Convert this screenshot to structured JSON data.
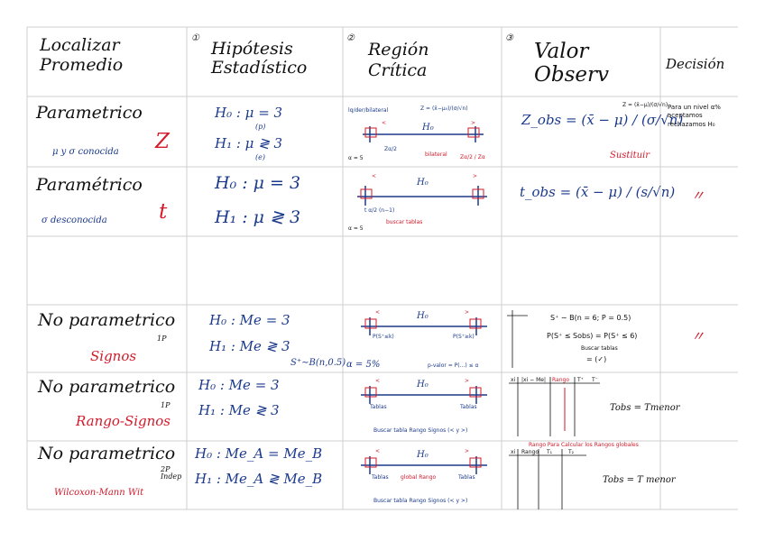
{
  "headers": {
    "h1": "Localizar Promedio",
    "h2_num": "①",
    "h2": "Hipótesis Estadístico",
    "h3_num": "②",
    "h3": "Región Crítica",
    "h4_num": "③",
    "h4": "Valor Observ",
    "h5": "Decisión"
  },
  "rows": [
    {
      "title": "Parametrico",
      "sub": "μ y σ conocida",
      "stat": "Z",
      "h0": "H₀ : μ = 3",
      "h1": "H₁ : μ ≷ 3",
      "h0_note": "(p)",
      "h1_note": "(e)",
      "rc_top": "lq/der/bilateral",
      "rc_formula": "Z = (x̄−μ₀)/(σ/√n)",
      "rc_h0": "H₀",
      "rc_left": "<",
      "rc_right": ">",
      "rc_b1": "Zα/2",
      "rc_b2": "bilateral",
      "rc_b3": "Zα/2 / Zα",
      "rc_alpha": "α = 5",
      "val": "Z_obs = (x̄ − μ) / (σ/√n)",
      "val_side": "Z = (x̄−μ)/(σ/√n)",
      "val_note": "Sustituir",
      "dec": "Para un nivel α% aceptamos rechazamos H₀"
    },
    {
      "title": "Paramétrico",
      "sub": "σ desconocida",
      "stat": "t",
      "h0": "H₀ : μ = 3",
      "h1": "H₁ : μ ≷ 3",
      "rc_h0": "H₀",
      "rc_left": "<",
      "rc_right": ">",
      "rc_b1": "t α/2 (n−1)",
      "rc_b2": "buscar tablas",
      "rc_alpha": "α = 5",
      "val": "t_obs = (x̄ − μ) / (s/√n)",
      "dec": "〃"
    },
    {},
    {
      "title": "No parametrico",
      "sub": "Signos",
      "tag": "1P",
      "h0": "H₀ : Me = 3",
      "h1": "H₁ : Me ≷ 3",
      "dist": "S⁺∼B(n,0.5)",
      "rc_h0": "H₀",
      "rc_left": "<",
      "rc_right": ">",
      "rc_b1": "P(S⁺≤k)",
      "rc_b2": "P(S⁺≥k)",
      "rc_alpha": "α = 5%",
      "rc_note": "p-valor = P(...) ≤ α",
      "val_1": "S⁺ ∼ B(n = 6; P = 0.5)",
      "val_2": "P(S⁺ ≤ Sobs) = P(S⁺ ≤ 6)",
      "val_3": "= (✓)",
      "val_note": "Buscar tablas",
      "dec": "〃"
    },
    {
      "title": "No parametrico",
      "sub": "Rango-Signos",
      "tag": "1P",
      "h0": "H₀ : Me = 3",
      "h1": "H₁ : Me ≷ 3",
      "rc_h0": "H₀",
      "rc_left": "<",
      "rc_right": ">",
      "rc_b1": "Tablas",
      "rc_b2": "Tablas",
      "rc_note": "Buscar tabla Rango Signos (< y >)",
      "val_cols": [
        "xi",
        "|xi − Me|",
        "Rango",
        "T⁺",
        "T⁻"
      ],
      "val_note": "Tobs = Tmenor",
      "dec": ""
    },
    {
      "title": "No parametrico",
      "sub": "Wilcoxon-Mann Wit",
      "tag": "2P Indep",
      "h0": "H₀ : Me_A = Me_B",
      "h1": "H₁ : Me_A ≷ Me_B",
      "rc_h0": "H₀",
      "rc_left": "<",
      "rc_right": ">",
      "rc_b1": "Tablas",
      "rc_b2": "Tablas",
      "rc_mid": "global Rango",
      "rc_note": "Buscar tabla Rango Signos (< y >)",
      "val_top": "Rango   Para Calcular los Rangos globales",
      "val_cols": [
        "xi",
        "Rango",
        "T₁",
        "T₂"
      ],
      "val_note": "Tobs = T menor",
      "dec": ""
    }
  ]
}
